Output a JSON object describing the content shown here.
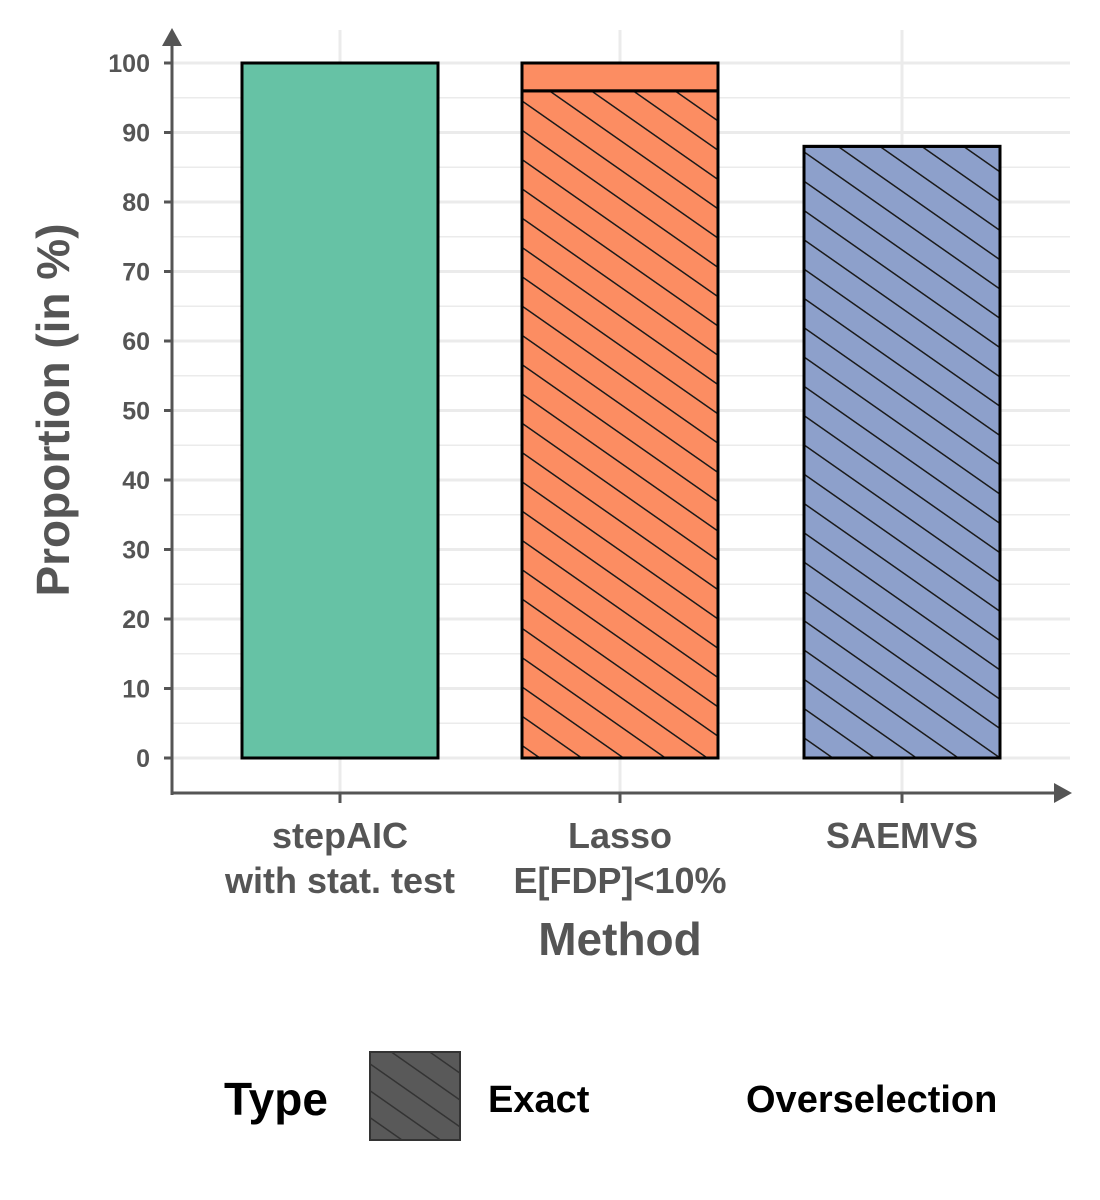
{
  "chart_data": {
    "type": "bar",
    "stacked": true,
    "xlabel": "Method",
    "ylabel": "Proportion (in %)",
    "ylim": [
      0,
      100
    ],
    "yticks": [
      0,
      10,
      20,
      30,
      40,
      50,
      60,
      70,
      80,
      90,
      100
    ],
    "grid": true,
    "categories": [
      [
        "stepAIC",
        "with stat. test"
      ],
      [
        "Lasso",
        "E[FDP]<10%"
      ],
      [
        "SAEMVS"
      ]
    ],
    "category_colors": [
      "#66c2a5",
      "#fc8d62",
      "#8da0cb"
    ],
    "series": [
      {
        "name": "Exact",
        "pattern": "hatch",
        "values": [
          0,
          96,
          88
        ]
      },
      {
        "name": "Overselection",
        "pattern": "none",
        "values": [
          100,
          4,
          0
        ]
      }
    ],
    "legend": {
      "title": "Type",
      "position": "bottom",
      "swatch_color": "#595959"
    }
  }
}
